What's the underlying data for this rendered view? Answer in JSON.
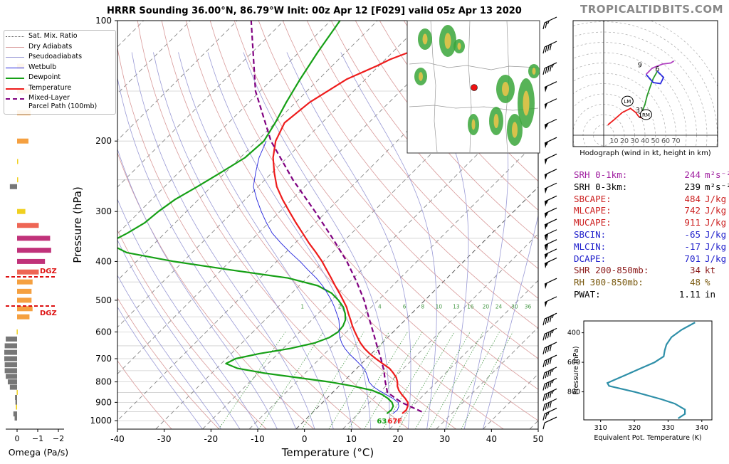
{
  "header": {
    "title": "HRRR Sounding 36.00°N, 86.79°W Init: 00z Apr 12 [F029] valid 05z Apr 13 2020",
    "brand": "TROPICALTIDBITS.COM"
  },
  "colors": {
    "temperature": "#ee1c1c",
    "dewpoint": "#16a016",
    "parcel": "#800080",
    "wetbulb": "#2222dd",
    "dry_adiabat": "#d99a9a",
    "moist_adiabat": "#9a9ad6",
    "mixing_ratio": "#4a9a4a",
    "isotherm": "#777777",
    "dgz": "#dd1111",
    "omega_orange": "#f5a040",
    "omega_magenta": "#c0327a",
    "omega_salmon": "#ee6655",
    "omega_gray": "#777777",
    "omega_yellow": "#f0d020",
    "equiv_pot": "#2e8fa8",
    "srh": "#a020a0",
    "cape": "#cc2020",
    "cin": "#2020cc",
    "shear": "#8b1a1a",
    "rh": "#7a5a10",
    "hodo_red": "#ee1c1c",
    "hodo_green": "#2a9a2a",
    "hodo_blue": "#2a2ae0",
    "hodo_purple": "#b040c0"
  },
  "legend": {
    "items": [
      {
        "label": "Sat. Mix. Ratio",
        "style": "dotted",
        "color": "#555555"
      },
      {
        "label": "Dry Adiabats",
        "style": "thin",
        "color": "#d99a9a"
      },
      {
        "label": "Pseudoadiabats",
        "style": "thin",
        "color": "#9a9ad6"
      },
      {
        "label": "Wetbulb",
        "style": "thin",
        "color": "#2222dd"
      },
      {
        "label": "Dewpoint",
        "style": "thick",
        "color": "#16a016"
      },
      {
        "label": "Temperature",
        "style": "thick",
        "color": "#ee1c1c"
      },
      {
        "label": "Mixed-Layer",
        "label2": "Parcel Path (100mb)",
        "style": "dash",
        "color": "#800080"
      }
    ]
  },
  "stats": [
    {
      "label": "SRH 0-1km:",
      "value": "244",
      "unit": "m²s⁻²",
      "color": "#a020a0"
    },
    {
      "label": "SRH 0-3km:",
      "value": "239",
      "unit": "m²s⁻²",
      "color": "#000000"
    },
    {
      "label": "SBCAPE:",
      "value": "484",
      "unit": "J/kg",
      "color": "#cc2020"
    },
    {
      "label": "MLCAPE:",
      "value": "742",
      "unit": "J/kg",
      "color": "#cc2020"
    },
    {
      "label": "MUCAPE:",
      "value": "911",
      "unit": "J/kg",
      "color": "#cc2020"
    },
    {
      "label": "SBCIN:",
      "value": "-65",
      "unit": "J/kg",
      "color": "#2020cc"
    },
    {
      "label": "MLCIN:",
      "value": "-17",
      "unit": "J/kg",
      "color": "#2020cc"
    },
    {
      "label": "DCAPE:",
      "value": "701",
      "unit": "J/kg",
      "color": "#2020cc"
    },
    {
      "label": "SHR 200-850mb:",
      "value": "34",
      "unit": "kt",
      "color": "#8b1a1a"
    },
    {
      "label": "RH 300-850mb:",
      "value": "48",
      "unit": "%",
      "color": "#7a5a10"
    },
    {
      "label": "PWAT:",
      "value": "1.11",
      "unit": "in",
      "color": "#000000"
    }
  ],
  "chart_data": [
    {
      "type": "line",
      "name": "skew-t",
      "xlabel": "Temperature (°C)",
      "ylabel": "Pressure (hPa)",
      "xlim": [
        -40,
        50
      ],
      "xticks": [
        -40,
        -30,
        -20,
        -10,
        0,
        10,
        20,
        30,
        40,
        50
      ],
      "ylim": [
        1050,
        100
      ],
      "yticks": [
        100,
        200,
        300,
        400,
        500,
        600,
        700,
        800,
        900,
        1000
      ],
      "log_y": true,
      "skew": true,
      "grid": true,
      "mixing_ratio_labels": [
        "1",
        "2",
        "4",
        "6",
        "8",
        "10",
        "13",
        "16",
        "20",
        "24",
        "30",
        "36"
      ],
      "surface_dewpoint_label": "63",
      "surface_temp_label": "67F",
      "series": [
        {
          "name": "Temperature",
          "p": [
            960,
            940,
            920,
            900,
            880,
            860,
            840,
            820,
            800,
            780,
            760,
            740,
            720,
            700,
            680,
            660,
            640,
            620,
            600,
            580,
            560,
            540,
            520,
            500,
            480,
            460,
            440,
            420,
            400,
            380,
            360,
            340,
            320,
            300,
            280,
            260,
            240,
            220,
            200,
            180,
            160,
            140,
            130,
            125,
            120,
            115,
            110,
            105,
            100
          ],
          "t": [
            19.4,
            19.5,
            19.0,
            18.2,
            16.8,
            15.2,
            13.7,
            12.5,
            11.6,
            10.4,
            8.8,
            7.0,
            4.5,
            2.0,
            -0.4,
            -2.6,
            -4.6,
            -6.4,
            -8.2,
            -10.0,
            -11.7,
            -13.5,
            -15.3,
            -17.5,
            -19.8,
            -22.3,
            -24.8,
            -27.5,
            -30.3,
            -33.5,
            -37.0,
            -40.5,
            -44.2,
            -48.0,
            -52.0,
            -56.0,
            -59.5,
            -63.0,
            -66.0,
            -68.0,
            -67.0,
            -64.0,
            -60.5,
            -59.0,
            -56.5,
            -53.0,
            -50.0,
            -47.0,
            -44.5
          ]
        },
        {
          "name": "Dewpoint",
          "p": [
            960,
            940,
            920,
            900,
            880,
            860,
            840,
            820,
            800,
            780,
            760,
            740,
            720,
            700,
            680,
            660,
            640,
            620,
            600,
            580,
            560,
            540,
            520,
            500,
            480,
            460,
            440,
            420,
            400,
            380,
            360,
            340,
            320,
            300,
            280,
            260,
            240,
            220,
            200,
            180,
            160,
            140,
            120,
            100
          ],
          "t": [
            16.1,
            16.3,
            15.9,
            14.8,
            13.1,
            11.0,
            8.0,
            3.0,
            -3.0,
            -11.0,
            -19.0,
            -25.5,
            -29.0,
            -28.0,
            -24.0,
            -18.5,
            -14.5,
            -12.5,
            -11.8,
            -12.0,
            -12.8,
            -14.2,
            -16.0,
            -18.5,
            -21.5,
            -26.0,
            -34.0,
            -48.0,
            -62.0,
            -74.0,
            -80.0,
            -78.0,
            -76.5,
            -76.0,
            -75.0,
            -73.0,
            -71.0,
            -69.0,
            -68.5,
            -70.0,
            -72.0,
            -74.0,
            -76.0,
            -78.0
          ]
        },
        {
          "name": "Wetbulb",
          "p": [
            960,
            940,
            920,
            900,
            880,
            860,
            840,
            820,
            800,
            780,
            760,
            740,
            720,
            700,
            680,
            660,
            640,
            620,
            600,
            580,
            560,
            540,
            520,
            500,
            480,
            460,
            440,
            420,
            400,
            380,
            360,
            340,
            320,
            300,
            280,
            260,
            240,
            220,
            200
          ],
          "t": [
            17.4,
            17.6,
            17.1,
            16.1,
            14.2,
            11.8,
            9.4,
            7.2,
            5.5,
            4.3,
            3.0,
            1.5,
            -0.5,
            -2.6,
            -4.8,
            -6.8,
            -8.6,
            -10.2,
            -11.6,
            -12.8,
            -14.2,
            -16.0,
            -17.9,
            -20.0,
            -22.4,
            -25.0,
            -28.0,
            -31.5,
            -35.0,
            -39.0,
            -43.0,
            -47.0,
            -50.5,
            -54.0,
            -57.5,
            -61.0,
            -63.5,
            -66.0,
            -68.0
          ]
        },
        {
          "name": "Mixed-Layer Parcel Path (100mb)",
          "p": [
            950,
            900,
            850,
            800,
            750,
            700,
            650,
            600,
            550,
            500,
            450,
            400,
            350,
            300,
            250,
            200,
            150,
            100
          ],
          "t": [
            23.2,
            16.8,
            11.7,
            9.0,
            6.3,
            3.1,
            -0.5,
            -4.3,
            -8.5,
            -13.0,
            -18.5,
            -25.0,
            -33.0,
            -42.5,
            -54.0,
            -67.0,
            -81.0,
            -97.0
          ]
        }
      ],
      "wind_barbs": [
        {
          "p": 1000,
          "spd": 10
        },
        {
          "p": 950,
          "spd": 25
        },
        {
          "p": 900,
          "spd": 40
        },
        {
          "p": 850,
          "spd": 45
        },
        {
          "p": 800,
          "spd": 45
        },
        {
          "p": 750,
          "spd": 45
        },
        {
          "p": 700,
          "spd": 40
        },
        {
          "p": 650,
          "spd": 40
        },
        {
          "p": 600,
          "spd": 45
        },
        {
          "p": 550,
          "spd": 45
        },
        {
          "p": 500,
          "spd": 50
        },
        {
          "p": 450,
          "spd": 50
        },
        {
          "p": 400,
          "spd": 55
        },
        {
          "p": 380,
          "spd": 55
        },
        {
          "p": 360,
          "spd": 60
        },
        {
          "p": 340,
          "spd": 60
        },
        {
          "p": 320,
          "spd": 55
        },
        {
          "p": 300,
          "spd": 55
        },
        {
          "p": 280,
          "spd": 55
        },
        {
          "p": 260,
          "spd": 50
        },
        {
          "p": 240,
          "spd": 50
        },
        {
          "p": 220,
          "spd": 50
        },
        {
          "p": 200,
          "spd": 55
        },
        {
          "p": 180,
          "spd": 55
        },
        {
          "p": 160,
          "spd": 50
        },
        {
          "p": 145,
          "spd": 50
        },
        {
          "p": 130,
          "spd": 45
        },
        {
          "p": 115,
          "spd": 40
        },
        {
          "p": 100,
          "spd": 25
        }
      ]
    },
    {
      "type": "bar",
      "name": "omega",
      "xlabel": "Omega (Pa/s)",
      "xticks": [
        0,
        -1,
        -2
      ],
      "xlim": [
        0.6,
        -2.4
      ],
      "annotations": [
        "DGZ",
        "DGZ"
      ],
      "dgz_pressures": [
        437,
        517
      ],
      "bars": [
        {
          "p": 985,
          "v": 0.12,
          "c": "gray"
        },
        {
          "p": 962,
          "v": 0.18,
          "c": "gray"
        },
        {
          "p": 925,
          "v": 0.06,
          "c": "yellow"
        },
        {
          "p": 899,
          "v": 0.08,
          "c": "gray"
        },
        {
          "p": 875,
          "v": 0.1,
          "c": "gray"
        },
        {
          "p": 850,
          "v": 0.02,
          "c": "yellow"
        },
        {
          "p": 825,
          "v": 0.35,
          "c": "gray"
        },
        {
          "p": 800,
          "v": 0.45,
          "c": "gray"
        },
        {
          "p": 775,
          "v": 0.55,
          "c": "gray"
        },
        {
          "p": 750,
          "v": 0.6,
          "c": "gray"
        },
        {
          "p": 725,
          "v": 0.6,
          "c": "gray"
        },
        {
          "p": 700,
          "v": 0.62,
          "c": "gray"
        },
        {
          "p": 675,
          "v": 0.62,
          "c": "gray"
        },
        {
          "p": 650,
          "v": 0.6,
          "c": "gray"
        },
        {
          "p": 625,
          "v": 0.55,
          "c": "gray"
        },
        {
          "p": 600,
          "v": 0.02,
          "c": "yellow"
        },
        {
          "p": 550,
          "v": -0.6,
          "c": "orange"
        },
        {
          "p": 525,
          "v": -0.75,
          "c": "orange"
        },
        {
          "p": 500,
          "v": -0.7,
          "c": "orange"
        },
        {
          "p": 475,
          "v": -0.7,
          "c": "orange"
        },
        {
          "p": 450,
          "v": -0.75,
          "c": "orange"
        },
        {
          "p": 425,
          "v": -1.05,
          "c": "salmon"
        },
        {
          "p": 400,
          "v": -1.35,
          "c": "magenta"
        },
        {
          "p": 375,
          "v": -1.65,
          "c": "magenta"
        },
        {
          "p": 350,
          "v": -1.6,
          "c": "magenta"
        },
        {
          "p": 325,
          "v": -1.05,
          "c": "salmon"
        },
        {
          "p": 300,
          "v": -0.4,
          "c": "yellow"
        },
        {
          "p": 250,
          "v": -0.05,
          "c": "yellow"
        },
        {
          "p": 260,
          "v": 0.35,
          "c": "gray"
        },
        {
          "p": 225,
          "v": -0.02,
          "c": "yellow"
        },
        {
          "p": 200,
          "v": -0.55,
          "c": "orange"
        },
        {
          "p": 170,
          "v": -0.65,
          "c": "orange"
        },
        {
          "p": 150,
          "v": -0.7,
          "c": "orange"
        },
        {
          "p": 130,
          "v": -0.35,
          "c": "orange"
        }
      ]
    },
    {
      "type": "line",
      "name": "hodograph",
      "xlabel": "Hodograph (wind in kt, height in km)",
      "ring_labels": [
        "10",
        "20",
        "30",
        "40",
        "50",
        "60",
        "70"
      ],
      "height_labels": [
        {
          "t": "1",
          "u": 37,
          "v": 22
        },
        {
          "t": "2",
          "u": 36,
          "v": 17
        },
        {
          "t": "3",
          "u": 33,
          "v": 22
        },
        {
          "t": "6",
          "u": 52,
          "v": 62
        },
        {
          "t": "9",
          "u": 35,
          "v": 66
        }
      ],
      "markers": [
        {
          "t": "LM",
          "u": 23,
          "v": 33
        },
        {
          "t": "RM",
          "u": 41,
          "v": 20
        }
      ],
      "segments": [
        {
          "color": "red",
          "u": [
            4,
            10,
            18,
            26,
            31,
            34,
            36,
            37
          ],
          "v": [
            10,
            15,
            22,
            26,
            22,
            18,
            17,
            22
          ]
        },
        {
          "color": "green",
          "u": [
            37,
            40,
            42,
            45,
            48,
            52
          ],
          "v": [
            22,
            30,
            38,
            47,
            55,
            62
          ]
        },
        {
          "color": "blue",
          "u": [
            52,
            58,
            55,
            48,
            41
          ],
          "v": [
            62,
            56,
            50,
            51,
            59
          ]
        },
        {
          "color": "purple",
          "u": [
            41,
            47,
            57,
            65,
            68
          ],
          "v": [
            59,
            65,
            69,
            70,
            72
          ]
        }
      ]
    },
    {
      "type": "line",
      "name": "equivalent-potential-temperature",
      "xlabel": "Equivalent Pot. Temperature (K)",
      "ylabel": "Pressure (hPa)",
      "xticks": [
        310,
        320,
        330,
        340
      ],
      "yticks": [
        400,
        600,
        800
      ],
      "xlim": [
        305,
        343
      ],
      "ylim": [
        990,
        320
      ],
      "series": [
        {
          "name": "theta-e",
          "p": [
            330,
            380,
            430,
            480,
            520,
            560,
            600,
            640,
            680,
            720,
            740,
            760,
            800,
            850,
            880,
            920,
            950,
            980
          ],
          "t": [
            338,
            334,
            331,
            329.5,
            329,
            328.7,
            326,
            322,
            318,
            314,
            312,
            312.5,
            320,
            328,
            332,
            335,
            335,
            333
          ]
        }
      ]
    }
  ]
}
